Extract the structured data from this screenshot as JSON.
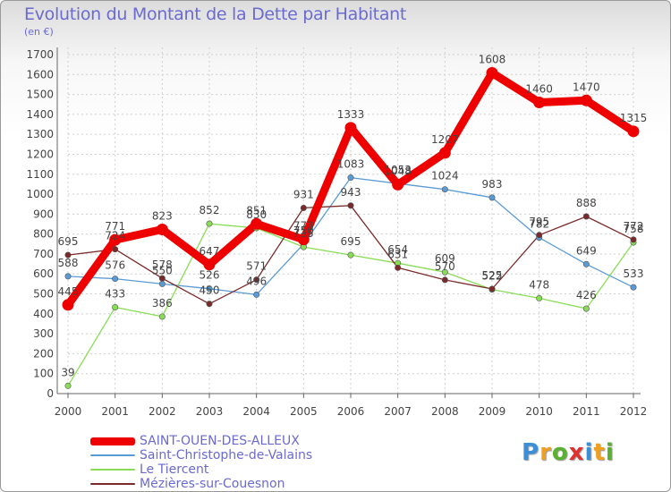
{
  "chart_data": {
    "type": "line",
    "title": "Evolution du Montant de la Dette par Habitant",
    "unit_label": "(en €)",
    "x": [
      "2000",
      "2001",
      "2002",
      "2003",
      "2004",
      "2005",
      "2006",
      "2007",
      "2008",
      "2009",
      "2010",
      "2011",
      "2012"
    ],
    "ylim": [
      0,
      1700
    ],
    "yticks": [
      0,
      100,
      200,
      300,
      400,
      500,
      600,
      700,
      800,
      900,
      1000,
      1100,
      1200,
      1300,
      1400,
      1500,
      1600,
      1700
    ],
    "grid": true,
    "legend_position": "bottom-left",
    "series": [
      {
        "name": "SAINT-OUEN-DES-ALLEUX",
        "color": "#ee0000",
        "values": [
          445,
          771,
          823,
          647,
          851,
          773,
          1333,
          1048,
          1207,
          1608,
          1460,
          1470,
          1315
        ]
      },
      {
        "name": "Saint-Christophe-de-Valains",
        "color": "#5b9bd5",
        "values": [
          588,
          576,
          550,
          526,
          496,
          750,
          1083,
          1053,
          1024,
          983,
          782,
          649,
          533
        ]
      },
      {
        "name": "Le Tiercent",
        "color": "#88dd55",
        "values": [
          39,
          433,
          386,
          852,
          830,
          735,
          695,
          654,
          609,
          522,
          478,
          426,
          758
        ]
      },
      {
        "name": "Mézières-sur-Couesnon",
        "color": "#7a2a2a",
        "values": [
          695,
          724,
          578,
          450,
          571,
          931,
          943,
          631,
          570,
          525,
          795,
          888,
          772
        ]
      }
    ]
  },
  "logo": {
    "letters": [
      "P",
      "r",
      "o",
      "x",
      "i",
      "t",
      "i"
    ]
  }
}
